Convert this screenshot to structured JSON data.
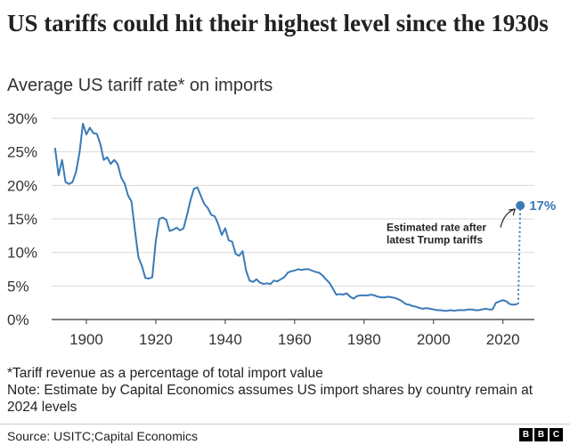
{
  "header": {
    "title": "US tariffs could hit their highest level since the 1930s",
    "subtitle": "Average US tariff rate* on imports"
  },
  "chart_data": {
    "type": "line",
    "title": "US tariffs could hit their highest level since the 1930s",
    "subtitle": "Average US tariff rate* on imports",
    "xlabel": "",
    "ylabel": "",
    "xlim": [
      1890,
      2027
    ],
    "ylim": [
      0,
      30
    ],
    "x_ticks": [
      1900,
      1920,
      1940,
      1960,
      1980,
      2000,
      2020
    ],
    "x_tick_labels": [
      "1900",
      "1920",
      "1940",
      "1960",
      "1980",
      "2000",
      "2020"
    ],
    "y_ticks": [
      0,
      5,
      10,
      15,
      20,
      25,
      30
    ],
    "y_tick_labels": [
      "0%",
      "5%",
      "10%",
      "15%",
      "20%",
      "25%",
      "30%"
    ],
    "grid": "horizontal",
    "series": [
      {
        "name": "Average US tariff rate",
        "color": "#3a7ab7",
        "x": [
          1891,
          1892,
          1893,
          1894,
          1895,
          1896,
          1897,
          1898,
          1899,
          1900,
          1901,
          1902,
          1903,
          1904,
          1905,
          1906,
          1907,
          1908,
          1909,
          1910,
          1911,
          1912,
          1913,
          1914,
          1915,
          1916,
          1917,
          1918,
          1919,
          1920,
          1921,
          1922,
          1923,
          1924,
          1925,
          1926,
          1927,
          1928,
          1929,
          1930,
          1931,
          1932,
          1933,
          1934,
          1935,
          1936,
          1937,
          1938,
          1939,
          1940,
          1941,
          1942,
          1943,
          1944,
          1945,
          1946,
          1947,
          1948,
          1949,
          1950,
          1951,
          1952,
          1953,
          1954,
          1955,
          1956,
          1957,
          1958,
          1959,
          1960,
          1961,
          1962,
          1963,
          1964,
          1965,
          1966,
          1967,
          1968,
          1969,
          1970,
          1971,
          1972,
          1973,
          1974,
          1975,
          1976,
          1977,
          1978,
          1979,
          1980,
          1981,
          1982,
          1983,
          1984,
          1985,
          1986,
          1987,
          1988,
          1989,
          1990,
          1991,
          1992,
          1993,
          1994,
          1995,
          1996,
          1997,
          1998,
          1999,
          2000,
          2001,
          2002,
          2003,
          2004,
          2005,
          2006,
          2007,
          2008,
          2009,
          2010,
          2011,
          2012,
          2013,
          2014,
          2015,
          2016,
          2017,
          2018,
          2019,
          2020,
          2021,
          2022,
          2023,
          2024
        ],
        "values": [
          25.5,
          21.5,
          23.8,
          20.5,
          20.2,
          20.5,
          22.0,
          24.8,
          29.2,
          27.6,
          28.6,
          27.8,
          27.7,
          26.2,
          23.8,
          24.2,
          23.2,
          23.8,
          23.2,
          21.2,
          20.3,
          18.5,
          17.6,
          13.3,
          9.3,
          8.0,
          6.2,
          6.1,
          6.3,
          11.7,
          15.0,
          15.2,
          14.9,
          13.2,
          13.4,
          13.7,
          13.3,
          13.6,
          15.6,
          17.8,
          19.5,
          19.7,
          18.4,
          17.2,
          16.6,
          15.6,
          15.4,
          14.2,
          12.6,
          13.6,
          11.8,
          11.6,
          9.8,
          9.5,
          10.2,
          7.3,
          5.8,
          5.6,
          6.0,
          5.5,
          5.3,
          5.4,
          5.3,
          5.8,
          5.7,
          6.0,
          6.3,
          7.0,
          7.2,
          7.3,
          7.5,
          7.4,
          7.5,
          7.5,
          7.3,
          7.1,
          7.0,
          6.6,
          6.0,
          5.5,
          4.6,
          3.7,
          3.8,
          3.7,
          3.9,
          3.4,
          3.1,
          3.5,
          3.6,
          3.6,
          3.6,
          3.7,
          3.6,
          3.4,
          3.3,
          3.3,
          3.4,
          3.3,
          3.2,
          3.0,
          2.7,
          2.3,
          2.2,
          2.0,
          1.9,
          1.7,
          1.6,
          1.7,
          1.6,
          1.5,
          1.4,
          1.4,
          1.3,
          1.3,
          1.4,
          1.3,
          1.4,
          1.4,
          1.4,
          1.5,
          1.5,
          1.4,
          1.4,
          1.5,
          1.6,
          1.5,
          1.5,
          2.5,
          2.7,
          2.9,
          2.7,
          2.3,
          2.2,
          2.3
        ]
      }
    ],
    "estimate": {
      "from": {
        "x": 2024,
        "y": 2.3
      },
      "point": {
        "x": 2025,
        "y": 17
      },
      "value_label": "17%",
      "color": "#3a7ab7",
      "annotation_lines": [
        "Estimated rate after",
        "latest Trump tariffs"
      ]
    }
  },
  "footnotes": {
    "definition": "*Tariff revenue as a percentage of total import value",
    "note": "Note: Estimate by Capital Economics assumes US import shares by country remain at 2024 levels"
  },
  "footer": {
    "source": "Source: USITC;Capital Economics",
    "logo_letters": [
      "B",
      "B",
      "C"
    ]
  }
}
